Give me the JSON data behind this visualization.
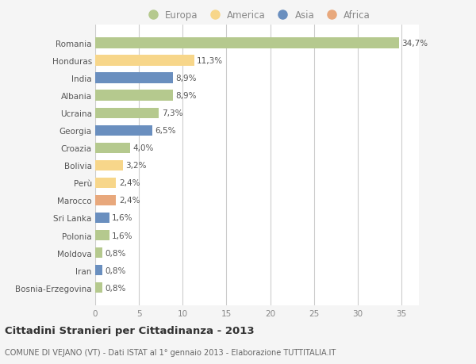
{
  "countries": [
    "Romania",
    "Honduras",
    "India",
    "Albania",
    "Ucraina",
    "Georgia",
    "Croazia",
    "Bolivia",
    "Perù",
    "Marocco",
    "Sri Lanka",
    "Polonia",
    "Moldova",
    "Iran",
    "Bosnia-Erzegovina"
  ],
  "values": [
    34.7,
    11.3,
    8.9,
    8.9,
    7.3,
    6.5,
    4.0,
    3.2,
    2.4,
    2.4,
    1.6,
    1.6,
    0.8,
    0.8,
    0.8
  ],
  "labels": [
    "34,7%",
    "11,3%",
    "8,9%",
    "8,9%",
    "7,3%",
    "6,5%",
    "4,0%",
    "3,2%",
    "2,4%",
    "2,4%",
    "1,6%",
    "1,6%",
    "0,8%",
    "0,8%",
    "0,8%"
  ],
  "colors": [
    "#b5c98e",
    "#f7d68a",
    "#6a8fbf",
    "#b5c98e",
    "#b5c98e",
    "#6a8fbf",
    "#b5c98e",
    "#f7d68a",
    "#f7d68a",
    "#e8a87c",
    "#6a8fbf",
    "#b5c98e",
    "#b5c98e",
    "#6a8fbf",
    "#b5c98e"
  ],
  "legend": {
    "Europa": "#b5c98e",
    "America": "#f7d68a",
    "Asia": "#6a8fbf",
    "Africa": "#e8a87c"
  },
  "xlim": [
    0,
    37
  ],
  "xticks": [
    0,
    5,
    10,
    15,
    20,
    25,
    30,
    35
  ],
  "title": "Cittadini Stranieri per Cittadinanza - 2013",
  "subtitle": "COMUNE DI VEJANO (VT) - Dati ISTAT al 1° gennaio 2013 - Elaborazione TUTTITALIA.IT",
  "background_color": "#f5f5f5",
  "plot_bg_color": "#ffffff",
  "grid_color": "#cccccc",
  "bar_height": 0.6,
  "label_fontsize": 7.5,
  "tick_fontsize": 7.5,
  "title_fontsize": 9.5,
  "subtitle_fontsize": 7.0
}
